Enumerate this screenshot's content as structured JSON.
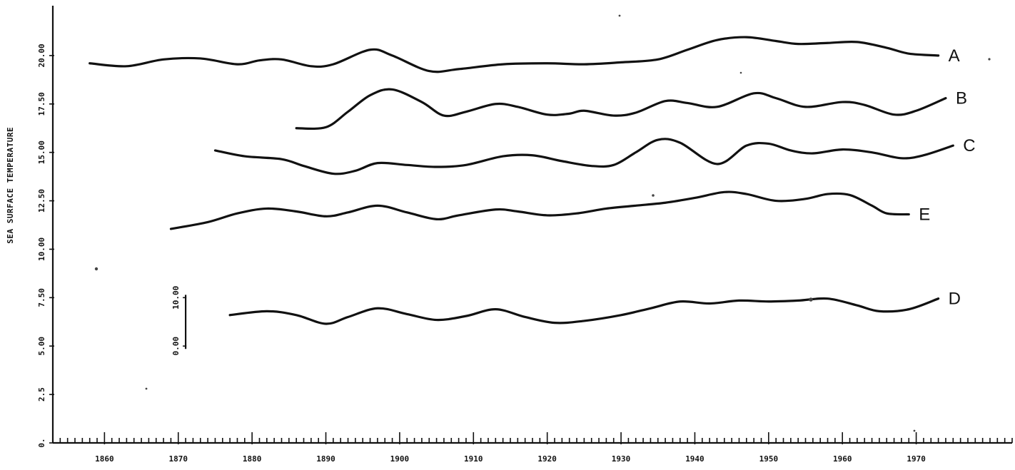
{
  "chart_data": {
    "type": "line",
    "title": "",
    "xlabel": "",
    "ylabel": "SEA SURFACE TEMPERATURE",
    "xlim": [
      1853,
      1983
    ],
    "ylim": [
      0,
      22.5
    ],
    "x_ticks": [
      {
        "value": 1860,
        "label": "1860"
      },
      {
        "value": 1870,
        "label": "1870"
      },
      {
        "value": 1880,
        "label": "1880"
      },
      {
        "value": 1890,
        "label": "1890"
      },
      {
        "value": 1900,
        "label": "1900"
      },
      {
        "value": 1910,
        "label": "1910"
      },
      {
        "value": 1920,
        "label": "1920"
      },
      {
        "value": 1930,
        "label": "1930"
      },
      {
        "value": 1940,
        "label": "1940"
      },
      {
        "value": 1950,
        "label": "1950"
      },
      {
        "value": 1960,
        "label": "1960"
      },
      {
        "value": 1970,
        "label": "1970"
      }
    ],
    "y_ticks": [
      {
        "value": 0,
        "label": "0."
      },
      {
        "value": 2.5,
        "label": "2.5"
      },
      {
        "value": 5,
        "label": "5.00"
      },
      {
        "value": 7.5,
        "label": "7.50"
      },
      {
        "value": 10,
        "label": "10.00"
      },
      {
        "value": 12.5,
        "label": "12.50"
      },
      {
        "value": 15,
        "label": "15.00"
      },
      {
        "value": 17.5,
        "label": "17.50"
      },
      {
        "value": 20,
        "label": "20.00"
      }
    ],
    "scale_bar": {
      "x": 1871,
      "low": 5,
      "high": 7.5,
      "labels": [
        "0.00",
        "10.00"
      ]
    },
    "series": [
      {
        "name": "A",
        "points": [
          [
            1858,
            19.6
          ],
          [
            1863,
            19.45
          ],
          [
            1868,
            19.8
          ],
          [
            1873,
            19.85
          ],
          [
            1878,
            19.55
          ],
          [
            1881,
            19.75
          ],
          [
            1884,
            19.8
          ],
          [
            1888,
            19.45
          ],
          [
            1891,
            19.55
          ],
          [
            1896,
            20.3
          ],
          [
            1899,
            20.0
          ],
          [
            1904,
            19.2
          ],
          [
            1908,
            19.3
          ],
          [
            1914,
            19.55
          ],
          [
            1920,
            19.6
          ],
          [
            1925,
            19.55
          ],
          [
            1930,
            19.65
          ],
          [
            1935,
            19.8
          ],
          [
            1939,
            20.3
          ],
          [
            1943,
            20.8
          ],
          [
            1947,
            20.95
          ],
          [
            1951,
            20.75
          ],
          [
            1954,
            20.6
          ],
          [
            1958,
            20.65
          ],
          [
            1962,
            20.7
          ],
          [
            1966,
            20.4
          ],
          [
            1969,
            20.1
          ],
          [
            1973,
            20.0
          ]
        ]
      },
      {
        "name": "B",
        "points": [
          [
            1886,
            16.25
          ],
          [
            1890,
            16.3
          ],
          [
            1893,
            17.1
          ],
          [
            1896,
            17.95
          ],
          [
            1899,
            18.25
          ],
          [
            1903,
            17.6
          ],
          [
            1906,
            16.9
          ],
          [
            1909,
            17.1
          ],
          [
            1913,
            17.5
          ],
          [
            1916,
            17.35
          ],
          [
            1920,
            16.95
          ],
          [
            1923,
            17.0
          ],
          [
            1925,
            17.15
          ],
          [
            1929,
            16.9
          ],
          [
            1932,
            17.05
          ],
          [
            1936,
            17.65
          ],
          [
            1939,
            17.55
          ],
          [
            1943,
            17.35
          ],
          [
            1948,
            18.05
          ],
          [
            1951,
            17.8
          ],
          [
            1955,
            17.35
          ],
          [
            1960,
            17.6
          ],
          [
            1963,
            17.45
          ],
          [
            1967,
            16.95
          ],
          [
            1970,
            17.15
          ],
          [
            1974,
            17.8
          ]
        ]
      },
      {
        "name": "C",
        "points": [
          [
            1875,
            15.1
          ],
          [
            1879,
            14.8
          ],
          [
            1884,
            14.65
          ],
          [
            1887,
            14.3
          ],
          [
            1891,
            13.9
          ],
          [
            1894,
            14.05
          ],
          [
            1897,
            14.45
          ],
          [
            1901,
            14.35
          ],
          [
            1905,
            14.25
          ],
          [
            1909,
            14.35
          ],
          [
            1914,
            14.8
          ],
          [
            1918,
            14.85
          ],
          [
            1922,
            14.55
          ],
          [
            1926,
            14.3
          ],
          [
            1929,
            14.35
          ],
          [
            1932,
            15.0
          ],
          [
            1935,
            15.65
          ],
          [
            1938,
            15.5
          ],
          [
            1943,
            14.4
          ],
          [
            1947,
            15.35
          ],
          [
            1950,
            15.45
          ],
          [
            1953,
            15.1
          ],
          [
            1956,
            14.95
          ],
          [
            1960,
            15.15
          ],
          [
            1964,
            15.0
          ],
          [
            1968,
            14.7
          ],
          [
            1971,
            14.85
          ],
          [
            1975,
            15.35
          ]
        ]
      },
      {
        "name": "E",
        "points": [
          [
            1869,
            11.05
          ],
          [
            1874,
            11.4
          ],
          [
            1878,
            11.85
          ],
          [
            1882,
            12.1
          ],
          [
            1886,
            11.95
          ],
          [
            1890,
            11.7
          ],
          [
            1893,
            11.9
          ],
          [
            1897,
            12.25
          ],
          [
            1901,
            11.9
          ],
          [
            1905,
            11.55
          ],
          [
            1908,
            11.75
          ],
          [
            1913,
            12.05
          ],
          [
            1916,
            11.95
          ],
          [
            1920,
            11.75
          ],
          [
            1924,
            11.85
          ],
          [
            1928,
            12.1
          ],
          [
            1932,
            12.25
          ],
          [
            1936,
            12.4
          ],
          [
            1940,
            12.65
          ],
          [
            1944,
            12.95
          ],
          [
            1947,
            12.85
          ],
          [
            1951,
            12.5
          ],
          [
            1955,
            12.6
          ],
          [
            1958,
            12.85
          ],
          [
            1961,
            12.8
          ],
          [
            1964,
            12.25
          ],
          [
            1966,
            11.85
          ],
          [
            1969,
            11.8
          ]
        ]
      },
      {
        "name": "D",
        "points": [
          [
            1877,
            6.6
          ],
          [
            1882,
            6.8
          ],
          [
            1886,
            6.6
          ],
          [
            1890,
            6.15
          ],
          [
            1893,
            6.5
          ],
          [
            1897,
            6.95
          ],
          [
            1901,
            6.65
          ],
          [
            1905,
            6.35
          ],
          [
            1909,
            6.55
          ],
          [
            1913,
            6.9
          ],
          [
            1917,
            6.5
          ],
          [
            1921,
            6.2
          ],
          [
            1925,
            6.3
          ],
          [
            1930,
            6.6
          ],
          [
            1934,
            6.95
          ],
          [
            1938,
            7.3
          ],
          [
            1942,
            7.2
          ],
          [
            1946,
            7.35
          ],
          [
            1950,
            7.3
          ],
          [
            1954,
            7.35
          ],
          [
            1958,
            7.45
          ],
          [
            1962,
            7.1
          ],
          [
            1965,
            6.8
          ],
          [
            1969,
            6.9
          ],
          [
            1973,
            7.45
          ]
        ]
      }
    ]
  }
}
